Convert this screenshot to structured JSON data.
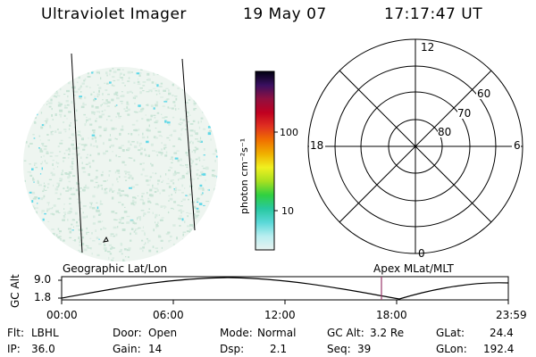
{
  "header": {
    "instrument": "Ultraviolet Imager",
    "date": "19 May 07",
    "time": "17:17:47 UT"
  },
  "colorbar": {
    "unit_label": "photon cm⁻²s⁻¹",
    "ticks": [
      "100",
      "10"
    ]
  },
  "polar_plot": {
    "hour_labels": [
      "12",
      "18",
      "6",
      "0"
    ],
    "lat_labels": [
      "60",
      "70",
      "80"
    ]
  },
  "timeline": {
    "left_title": "Geographic Lat/Lon",
    "right_title": "Apex MLat/MLT",
    "axis_label": "GC Alt",
    "alt_max": "9.0",
    "alt_min": "1.8",
    "time_ticks": [
      "00:00",
      "06:00",
      "12:00",
      "18:00",
      "23:59"
    ],
    "marker_color": "#9a3a6a"
  },
  "status": {
    "flt_label": "Flt:",
    "flt_value": "LBHL",
    "ip_label": "IP:",
    "ip_value": "36.0",
    "door_label": "Door:",
    "door_value": "Open",
    "gain_label": "Gain:",
    "gain_value": "14",
    "mode_label": "Mode:",
    "mode_value": "Normal",
    "dsp_label": "Dsp:",
    "dsp_value": "2.1",
    "gcalt_label": "GC Alt:",
    "gcalt_value": "3.2 Re",
    "seq_label": "Seq:",
    "seq_value": "39",
    "glat_label": "GLat:",
    "glat_value": "24.4",
    "glon_label": "GLon:",
    "glon_value": "192.4"
  },
  "colors": {
    "disk_base": "#eaf3ec",
    "speckle_light": "#c9e4d6",
    "speckle_cyan": "#5fd8e8",
    "colorbar_stops": [
      "#e8f2f0",
      "#b8eef0",
      "#5ad8d8",
      "#28c8a0",
      "#30d040",
      "#a8e020",
      "#f0f020",
      "#f0b000",
      "#f07000",
      "#e03020",
      "#c00020",
      "#901040",
      "#3a1060",
      "#000010"
    ]
  }
}
